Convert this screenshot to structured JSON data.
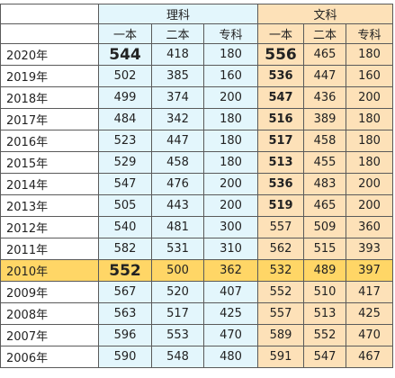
{
  "header": {
    "groups": [
      "理科",
      "文科"
    ],
    "sub": [
      "一本",
      "二本",
      "专科",
      "一本",
      "二本",
      "专科"
    ]
  },
  "rows": [
    {
      "year": "2020年",
      "li1": "544",
      "li2": "418",
      "li3": "180",
      "wen1": "556",
      "wen2": "465",
      "wen3": "180"
    },
    {
      "year": "2019年",
      "li1": "502",
      "li2": "385",
      "li3": "160",
      "wen1": "536",
      "wen2": "447",
      "wen3": "160"
    },
    {
      "year": "2018年",
      "li1": "499",
      "li2": "374",
      "li3": "200",
      "wen1": "547",
      "wen2": "436",
      "wen3": "200"
    },
    {
      "year": "2017年",
      "li1": "484",
      "li2": "342",
      "li3": "180",
      "wen1": "516",
      "wen2": "389",
      "wen3": "180"
    },
    {
      "year": "2016年",
      "li1": "523",
      "li2": "447",
      "li3": "180",
      "wen1": "517",
      "wen2": "458",
      "wen3": "180"
    },
    {
      "year": "2015年",
      "li1": "529",
      "li2": "458",
      "li3": "180",
      "wen1": "513",
      "wen2": "455",
      "wen3": "180"
    },
    {
      "year": "2014年",
      "li1": "547",
      "li2": "476",
      "li3": "200",
      "wen1": "536",
      "wen2": "483",
      "wen3": "200"
    },
    {
      "year": "2013年",
      "li1": "505",
      "li2": "443",
      "li3": "200",
      "wen1": "519",
      "wen2": "465",
      "wen3": "200"
    },
    {
      "year": "2012年",
      "li1": "540",
      "li2": "481",
      "li3": "300",
      "wen1": "557",
      "wen2": "509",
      "wen3": "360"
    },
    {
      "year": "2011年",
      "li1": "582",
      "li2": "531",
      "li3": "310",
      "wen1": "562",
      "wen2": "515",
      "wen3": "393"
    },
    {
      "year": "2010年",
      "li1": "552",
      "li2": "500",
      "li3": "362",
      "wen1": "532",
      "wen2": "489",
      "wen3": "397"
    },
    {
      "year": "2009年",
      "li1": "567",
      "li2": "520",
      "li3": "407",
      "wen1": "552",
      "wen2": "510",
      "wen3": "417"
    },
    {
      "year": "2008年",
      "li1": "563",
      "li2": "517",
      "li3": "425",
      "wen1": "557",
      "wen2": "513",
      "wen3": "425"
    },
    {
      "year": "2007年",
      "li1": "596",
      "li2": "553",
      "li3": "470",
      "wen1": "589",
      "wen2": "552",
      "wen3": "470"
    },
    {
      "year": "2006年",
      "li1": "590",
      "li2": "548",
      "li3": "480",
      "wen1": "591",
      "wen2": "547",
      "wen3": "467"
    }
  ],
  "colors": {
    "li_bg": "#e3f6fc",
    "wen_bg": "#fde1b8",
    "highlight_row": "#ffd666",
    "purple_text": "#a23ad0",
    "red_text": "#d9344a"
  }
}
